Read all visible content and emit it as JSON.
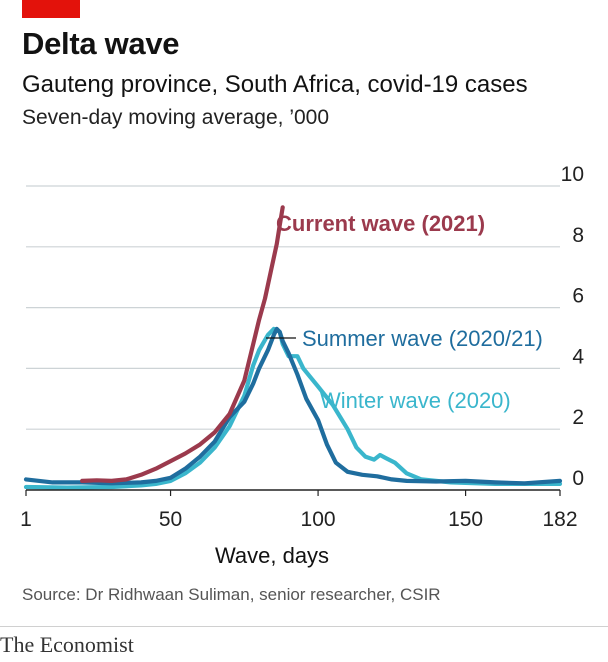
{
  "header": {
    "title": "Delta wave",
    "subtitle": "Gauteng province, South Africa, covid-19 cases",
    "units": "Seven-day moving average, ’000"
  },
  "footer": {
    "source": "Source: Dr Ridhwaan Suliman, senior researcher, CSIR",
    "logo": "The Economist"
  },
  "colors": {
    "brand_red": "#e3120b",
    "current": "#9b3a4d",
    "summer": "#1f6d9e",
    "winter": "#3ab6cc"
  },
  "chart_data": {
    "type": "line",
    "xlabel": "Wave, days",
    "ylabel": "",
    "xlim": [
      1,
      182
    ],
    "ylim": [
      0,
      10
    ],
    "x_ticks": [
      1,
      50,
      100,
      150,
      182
    ],
    "y_ticks": [
      0,
      2,
      4,
      6,
      8,
      10
    ],
    "grid": "horizontal",
    "series": [
      {
        "name": "Current wave (2021)",
        "color": "#9b3a4d",
        "points": [
          [
            20,
            0.3
          ],
          [
            25,
            0.32
          ],
          [
            30,
            0.3
          ],
          [
            35,
            0.35
          ],
          [
            40,
            0.5
          ],
          [
            45,
            0.7
          ],
          [
            50,
            0.95
          ],
          [
            55,
            1.2
          ],
          [
            60,
            1.5
          ],
          [
            65,
            1.9
          ],
          [
            70,
            2.5
          ],
          [
            75,
            3.6
          ],
          [
            78,
            4.8
          ],
          [
            80,
            5.6
          ],
          [
            82,
            6.3
          ],
          [
            84,
            7.2
          ],
          [
            86,
            8.1
          ],
          [
            87,
            8.7
          ],
          [
            88,
            9.3
          ]
        ]
      },
      {
        "name": "Summer wave (2020/21)",
        "color": "#1f6d9e",
        "points": [
          [
            1,
            0.35
          ],
          [
            10,
            0.25
          ],
          [
            20,
            0.25
          ],
          [
            30,
            0.22
          ],
          [
            40,
            0.25
          ],
          [
            45,
            0.3
          ],
          [
            50,
            0.4
          ],
          [
            55,
            0.7
          ],
          [
            60,
            1.1
          ],
          [
            65,
            1.6
          ],
          [
            70,
            2.4
          ],
          [
            75,
            2.9
          ],
          [
            78,
            3.5
          ],
          [
            80,
            4.0
          ],
          [
            83,
            4.6
          ],
          [
            85,
            5.1
          ],
          [
            86,
            5.3
          ],
          [
            87,
            5.2
          ],
          [
            88,
            4.9
          ],
          [
            90,
            4.5
          ],
          [
            93,
            3.8
          ],
          [
            96,
            3.0
          ],
          [
            100,
            2.3
          ],
          [
            103,
            1.5
          ],
          [
            106,
            0.9
          ],
          [
            110,
            0.6
          ],
          [
            115,
            0.5
          ],
          [
            120,
            0.45
          ],
          [
            125,
            0.35
          ],
          [
            130,
            0.3
          ],
          [
            140,
            0.28
          ],
          [
            150,
            0.3
          ],
          [
            160,
            0.25
          ],
          [
            170,
            0.22
          ],
          [
            182,
            0.3
          ]
        ]
      },
      {
        "name": "Winter wave (2020)",
        "color": "#3ab6cc",
        "points": [
          [
            1,
            0.1
          ],
          [
            15,
            0.08
          ],
          [
            30,
            0.1
          ],
          [
            40,
            0.15
          ],
          [
            45,
            0.2
          ],
          [
            50,
            0.3
          ],
          [
            55,
            0.55
          ],
          [
            60,
            0.9
          ],
          [
            65,
            1.4
          ],
          [
            70,
            2.1
          ],
          [
            75,
            3.1
          ],
          [
            78,
            4.1
          ],
          [
            80,
            4.6
          ],
          [
            83,
            5.1
          ],
          [
            85,
            5.3
          ],
          [
            87,
            5.2
          ],
          [
            88,
            4.8
          ],
          [
            90,
            4.4
          ],
          [
            93,
            4.4
          ],
          [
            95,
            4.0
          ],
          [
            100,
            3.4
          ],
          [
            105,
            2.8
          ],
          [
            110,
            2.0
          ],
          [
            113,
            1.4
          ],
          [
            116,
            1.1
          ],
          [
            119,
            1.0
          ],
          [
            121,
            1.15
          ],
          [
            123,
            1.05
          ],
          [
            126,
            0.9
          ],
          [
            130,
            0.55
          ],
          [
            135,
            0.35
          ],
          [
            145,
            0.25
          ],
          [
            160,
            0.2
          ],
          [
            182,
            0.2
          ]
        ]
      }
    ]
  }
}
